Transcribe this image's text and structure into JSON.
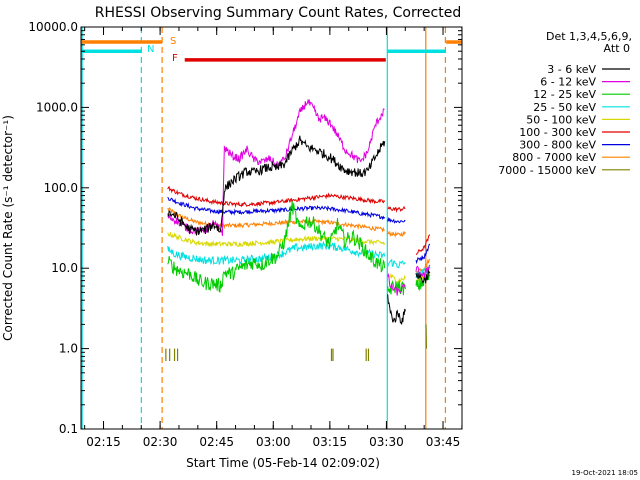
{
  "chart_data": {
    "type": "line",
    "title": "RHESSI Observing Summary Count Rates, Corrected",
    "ylabel": "Corrected Count Rate (s⁻¹ detector⁻¹)",
    "xlabel": "Start Time (05-Feb-14 02:09:02)",
    "footer": "19-Oct-2021 18:05",
    "y_log": true,
    "ylim": [
      0.1,
      10000
    ],
    "xlim_minutes": [
      0,
      101
    ],
    "y_ticks": [
      {
        "v": 0.1,
        "label": "0.1"
      },
      {
        "v": 1,
        "label": "1.0"
      },
      {
        "v": 10,
        "label": "10.0"
      },
      {
        "v": 100,
        "label": "100.0"
      },
      {
        "v": 1000,
        "label": "1000.0"
      },
      {
        "v": 10000,
        "label": "10000.0"
      }
    ],
    "x_ticks": [
      {
        "label": "02:15",
        "v": 5.97
      },
      {
        "label": "02:30",
        "v": 20.97
      },
      {
        "label": "02:45",
        "v": 35.97
      },
      {
        "label": "03:00",
        "v": 50.97
      },
      {
        "label": "03:15",
        "v": 65.97
      },
      {
        "label": "03:30",
        "v": 80.97
      },
      {
        "label": "03:45",
        "v": 95.97
      }
    ],
    "legend": {
      "header": "Det 1,3,4,5,6,9,",
      "subheader": "Att 0",
      "items": [
        {
          "label": "3 - 6 keV",
          "color": "#000000"
        },
        {
          "label": "6 - 12 keV",
          "color": "#e000e0"
        },
        {
          "label": "12 - 25 keV",
          "color": "#00cc00"
        },
        {
          "label": "25 - 50 keV",
          "color": "#00e0e0"
        },
        {
          "label": "50 - 100 keV",
          "color": "#d8d800"
        },
        {
          "label": "100 - 300 keV",
          "color": "#e00000"
        },
        {
          "label": "300 - 800 keV",
          "color": "#0000e0"
        },
        {
          "label": "800 - 7000 keV",
          "color": "#ff8000"
        },
        {
          "label": "7000 - 15000 keV",
          "color": "#808000"
        }
      ]
    },
    "flag_labels": {
      "s": "S",
      "n": "N",
      "f": "F"
    },
    "flag_bars": [
      {
        "flag": "S",
        "color": "#ff8000",
        "y": 6500,
        "segments": [
          [
            0,
            21.5
          ],
          [
            96.8,
            101
          ]
        ]
      },
      {
        "flag": "N",
        "color": "#00e0e0",
        "y": 5000,
        "segments": [
          [
            0,
            16
          ],
          [
            81.2,
            96.6
          ]
        ]
      },
      {
        "flag": "F",
        "color": "#e00000",
        "y": 3900,
        "segments": [
          [
            27.5,
            80.8
          ]
        ]
      }
    ],
    "vlines": [
      {
        "minute": 16,
        "color": "#00e0e0",
        "dash": true
      },
      {
        "minute": 21.5,
        "color": "#ff8000",
        "dash": true
      },
      {
        "minute": 81.2,
        "color": "#00e0e0",
        "dash": false
      },
      {
        "minute": 91.4,
        "color": "#ff8000",
        "dash": false
      },
      {
        "minute": 96.6,
        "color": "#ff8000",
        "dash": true
      }
    ],
    "attenuator_ticks": [
      [
        22.5,
        23.5
      ],
      [
        24.8,
        25.6
      ],
      [
        66.4,
        66.8
      ],
      [
        75.6,
        76.2
      ]
    ],
    "series": [
      {
        "name": "3 - 6 keV",
        "color": "#000000",
        "noise": 0.06,
        "segments": [
          {
            "x": [
              23,
              25,
              27,
              29,
              31,
              33,
              34,
              35,
              36,
              36.5,
              37,
              38,
              40,
              42,
              44,
              46,
              48,
              50,
              52,
              54,
              56,
              58,
              60,
              62,
              64,
              66,
              68,
              70,
              72,
              74,
              76,
              78,
              80.5
            ],
            "y": [
              50,
              45,
              36,
              30,
              29,
              30,
              32,
              35,
              33,
              30,
              28,
              95,
              120,
              140,
              160,
              155,
              170,
              180,
              175,
              200,
              290,
              390,
              320,
              300,
              270,
              240,
              200,
              165,
              160,
              150,
              160,
              240,
              380
            ]
          },
          {
            "x": [
              81.3,
              82,
              83,
              84,
              85,
              86
            ],
            "y": [
              4.5,
              2.8,
              2.2,
              2.8,
              2.2,
              2.9
            ]
          },
          {
            "x": [
              88.8,
              89.5,
              91,
              92.5
            ],
            "y": [
              9,
              8,
              7,
              9
            ]
          }
        ]
      },
      {
        "name": "6 - 12 keV",
        "color": "#e000e0",
        "noise": 0.05,
        "segments": [
          {
            "x": [
              23,
              25,
              27,
              29,
              31,
              33,
              34,
              35,
              36,
              37,
              37.5,
              38,
              40,
              42,
              44,
              46,
              48,
              50,
              52,
              54,
              56,
              58,
              60,
              61,
              62,
              63,
              64,
              66,
              68,
              70,
              72,
              74,
              76,
              78,
              80.5
            ],
            "y": [
              44,
              40,
              34,
              30,
              29,
              30,
              33,
              36,
              33,
              30,
              28,
              320,
              250,
              230,
              300,
              220,
              210,
              230,
              190,
              230,
              450,
              850,
              1200,
              1050,
              900,
              700,
              750,
              650,
              450,
              300,
              250,
              210,
              280,
              600,
              950
            ]
          },
          {
            "x": [
              81.3,
              82,
              84,
              86
            ],
            "y": [
              8,
              6,
              5,
              6
            ]
          },
          {
            "x": [
              88.8,
              89.5,
              91,
              92.5
            ],
            "y": [
              10,
              9,
              8,
              11
            ]
          }
        ]
      },
      {
        "name": "12 - 25 keV",
        "color": "#00cc00",
        "noise": 0.09,
        "segments": [
          {
            "x": [
              23,
              25,
              27,
              29,
              31,
              33,
              35,
              37,
              38,
              40,
              42,
              44,
              46,
              48,
              50,
              52,
              54,
              56,
              58,
              60,
              62,
              64,
              66,
              68,
              70,
              72,
              74,
              76,
              78,
              80.5
            ],
            "y": [
              12,
              10,
              9,
              8.5,
              7,
              6.5,
              6.5,
              6,
              9,
              8.5,
              10,
              11,
              12,
              11,
              13,
              14,
              22,
              60,
              30,
              40,
              35,
              25,
              20,
              35,
              22,
              25,
              20,
              15,
              12,
              10
            ]
          },
          {
            "x": [
              81.3,
              82,
              84,
              86
            ],
            "y": [
              5,
              5.5,
              6,
              5.5
            ]
          },
          {
            "x": [
              88.8,
              89.5,
              91,
              92.5
            ],
            "y": [
              6,
              6,
              7,
              8
            ]
          }
        ]
      },
      {
        "name": "25 - 50 keV",
        "color": "#00e0e0",
        "noise": 0.05,
        "segments": [
          {
            "x": [
              23,
              25,
              27,
              29,
              31,
              33,
              35,
              37,
              39,
              41,
              43,
              45,
              47,
              49,
              51,
              53,
              55,
              57,
              59,
              61,
              63,
              65,
              67,
              69,
              71,
              73,
              75,
              77,
              79,
              80.5
            ],
            "y": [
              17,
              15,
              14,
              13.5,
              13,
              12.5,
              12.5,
              12.5,
              12.5,
              12.5,
              12.5,
              13,
              13,
              13.5,
              14,
              15,
              16.5,
              18,
              18,
              18.5,
              19,
              19,
              18.5,
              18,
              17,
              16,
              15.5,
              15,
              14.5,
              14
            ]
          },
          {
            "x": [
              81.3,
              82,
              84,
              86
            ],
            "y": [
              11,
              12,
              11,
              11.5
            ]
          },
          {
            "x": [
              88.8,
              89.5,
              91,
              92.5
            ],
            "y": [
              8,
              8.5,
              9,
              10
            ]
          }
        ]
      },
      {
        "name": "50 - 100 keV",
        "color": "#d8d800",
        "noise": 0.03,
        "segments": [
          {
            "x": [
              23,
              26,
              30,
              34,
              38,
              42,
              46,
              50,
              54,
              58,
              62,
              66,
              70,
              74,
              78,
              80.5
            ],
            "y": [
              27,
              24,
              21,
              20,
              20,
              20,
              20.5,
              21,
              22,
              23,
              23.5,
              23.5,
              23,
              22,
              21,
              20.5
            ]
          },
          {
            "x": [
              81.3,
              82,
              84,
              86
            ],
            "y": [
              8,
              8,
              7,
              7.5
            ]
          },
          {
            "x": [
              88.8,
              89.5,
              91,
              92.5
            ],
            "y": [
              7,
              7,
              8,
              9
            ]
          }
        ]
      },
      {
        "name": "100 - 300 keV",
        "color": "#e00000",
        "noise": 0.025,
        "segments": [
          {
            "x": [
              23,
              26,
              30,
              34,
              38,
              42,
              46,
              50,
              54,
              58,
              62,
              66,
              70,
              74,
              78,
              80.5
            ],
            "y": [
              100,
              85,
              75,
              68,
              64,
              62,
              63,
              65,
              68,
              72,
              76,
              80,
              76,
              72,
              68,
              67
            ]
          },
          {
            "x": [
              81.3,
              82,
              84,
              86
            ],
            "y": [
              55,
              55,
              54,
              55
            ]
          },
          {
            "x": [
              88.8,
              89.5,
              91,
              92.5
            ],
            "y": [
              15,
              16,
              18,
              26
            ]
          }
        ]
      },
      {
        "name": "300 - 800 keV",
        "color": "#0000e0",
        "noise": 0.025,
        "segments": [
          {
            "x": [
              23,
              26,
              30,
              34,
              38,
              42,
              46,
              50,
              54,
              58,
              62,
              66,
              70,
              74,
              78,
              80.5
            ],
            "y": [
              75,
              65,
              56,
              52,
              50,
              50,
              51,
              52,
              53,
              55,
              56,
              55,
              52,
              48,
              45,
              43
            ]
          },
          {
            "x": [
              81.3,
              82,
              84,
              86
            ],
            "y": [
              40,
              40,
              38,
              39
            ]
          },
          {
            "x": [
              88.8,
              89.5,
              91,
              92.5
            ],
            "y": [
              12,
              13,
              14,
              20
            ]
          }
        ]
      },
      {
        "name": "800 - 7000 keV",
        "color": "#ff8000",
        "noise": 0.025,
        "segments": [
          {
            "x": [
              23,
              26,
              30,
              34,
              38,
              42,
              46,
              50,
              54,
              58,
              62,
              66,
              70,
              74,
              78,
              80.5
            ],
            "y": [
              55,
              45,
              38,
              35,
              34,
              34,
              35,
              36,
              37,
              38,
              38,
              37,
              35,
              33,
              31,
              30
            ]
          },
          {
            "x": [
              81.3,
              82,
              84,
              86
            ],
            "y": [
              27,
              27,
              26,
              27
            ]
          },
          {
            "x": [
              88.8,
              89.5,
              91,
              92.5
            ],
            "y": [
              9,
              9.5,
              10,
              13
            ]
          }
        ]
      },
      {
        "name": "7000 - 15000 keV",
        "color": "#808000",
        "noise": 0.0,
        "segments": [
          {
            "x": [
              91.5,
              91.6
            ],
            "y": [
              2.0,
              1.0
            ]
          }
        ]
      }
    ]
  }
}
